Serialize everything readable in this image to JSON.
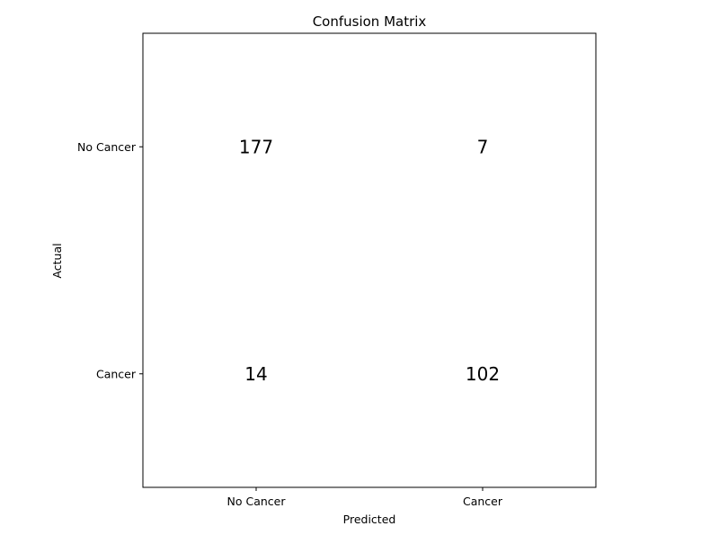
{
  "chart_data": {
    "type": "heatmap",
    "title": "Confusion Matrix",
    "xlabel": "Predicted",
    "ylabel": "Actual",
    "x_categories": [
      "No Cancer",
      "Cancer"
    ],
    "y_categories": [
      "No Cancer",
      "Cancer"
    ],
    "matrix": [
      [
        177,
        7
      ],
      [
        14,
        102
      ]
    ],
    "grid": false,
    "colors": {
      "background": "#ffffff",
      "cell_fill": "#ffffff",
      "border": "#000000",
      "text": "#000000"
    }
  }
}
